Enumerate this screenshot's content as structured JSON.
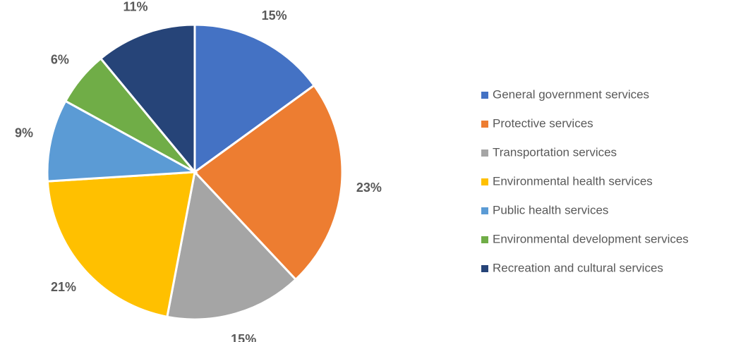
{
  "chart_data": {
    "type": "pie",
    "categories": [
      "General government services",
      "Protective services",
      "Transportation services",
      "Environmental health services",
      "Public health services",
      "Environmental development services",
      "Recreation and cultural services"
    ],
    "values": [
      15,
      23,
      15,
      21,
      9,
      6,
      11
    ],
    "value_labels": [
      "15%",
      "23%",
      "15%",
      "21%",
      "9%",
      "6%",
      "11%"
    ],
    "colors": [
      "#4472c4",
      "#ed7d31",
      "#a5a5a5",
      "#ffc000",
      "#5b9bd5",
      "#70ad47",
      "#264478"
    ],
    "legend": "right"
  }
}
